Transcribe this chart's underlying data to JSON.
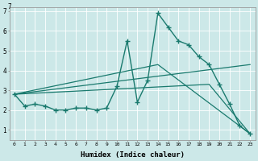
{
  "xlabel": "Humidex (Indice chaleur)",
  "background_color": "#cce8e8",
  "line_color": "#1a7a6e",
  "xlim": [
    -0.5,
    23.5
  ],
  "ylim": [
    0.5,
    7.2
  ],
  "xticks": [
    0,
    1,
    2,
    3,
    4,
    5,
    6,
    7,
    8,
    9,
    10,
    11,
    12,
    13,
    14,
    15,
    16,
    17,
    18,
    19,
    20,
    21,
    22,
    23
  ],
  "yticks": [
    1,
    2,
    3,
    4,
    5,
    6,
    7
  ],
  "line1_x": [
    0,
    1,
    2,
    3,
    4,
    5,
    6,
    7,
    8,
    9,
    10,
    11,
    12,
    13,
    14,
    15,
    16,
    17,
    18,
    19,
    20,
    21,
    22,
    23
  ],
  "line1_y": [
    2.8,
    2.2,
    2.3,
    2.2,
    2.0,
    2.0,
    2.1,
    2.1,
    2.0,
    2.1,
    3.2,
    5.5,
    2.4,
    3.5,
    6.9,
    6.2,
    5.5,
    5.3,
    4.7,
    4.3,
    3.3,
    2.3,
    1.2,
    0.8
  ],
  "line2_x": [
    0,
    23
  ],
  "line2_y": [
    2.8,
    4.3
  ],
  "line3_x": [
    0,
    19,
    23
  ],
  "line3_y": [
    2.8,
    3.3,
    0.8
  ],
  "line4_x": [
    0,
    14,
    23
  ],
  "line4_y": [
    2.8,
    4.3,
    0.8
  ]
}
